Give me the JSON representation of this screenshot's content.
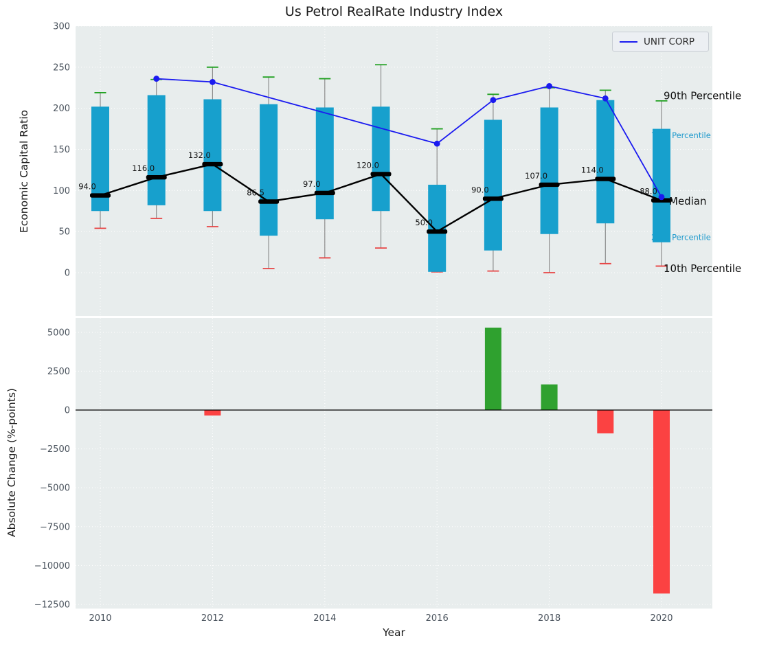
{
  "figure": {
    "title": "Us Petrol RealRate Industry Index",
    "xlabel": "Year"
  },
  "legend": {
    "label": "UNIT CORP"
  },
  "colors": {
    "plot_bg": "#e8eded",
    "grid": "#ffffff",
    "tick": "#49525c",
    "bar": "#17a0cd",
    "whisker": "#8d8d8d",
    "cap_top": "#21a121",
    "cap_bottom": "#e84343",
    "median": "#000000",
    "unit_line": "#1a1af0",
    "annotation_teal": "#1f9acd"
  },
  "chart_data": [
    {
      "type": "box-whisker-bar",
      "title": "Us Petrol RealRate Industry Index",
      "ylabel": "Economic Capital Ratio",
      "ylim": [
        -55,
        300
      ],
      "yticks": [
        300,
        250,
        200,
        150,
        100,
        50,
        0
      ],
      "grid": "white dotted on light gray",
      "years": [
        2010,
        2011,
        2012,
        2013,
        2014,
        2015,
        2016,
        2017,
        2018,
        2019,
        2020
      ],
      "xticks": [
        2010,
        2012,
        2014,
        2016,
        2018,
        2020
      ],
      "p10": [
        54,
        66,
        56,
        5,
        18,
        30,
        1,
        2,
        0,
        11,
        8
      ],
      "p25": [
        75,
        82,
        75,
        45,
        65,
        75,
        1,
        27,
        47,
        60,
        37
      ],
      "median": [
        94,
        116,
        132,
        86.5,
        97,
        120,
        50,
        90,
        107,
        114,
        88
      ],
      "p75": [
        202,
        216,
        211,
        205,
        201,
        202,
        107,
        186,
        201,
        210,
        175
      ],
      "p90": [
        219,
        235,
        250,
        238,
        236,
        253,
        175,
        217,
        225,
        222,
        209
      ],
      "median_labels": [
        "94.0",
        "116.0",
        "132.0",
        "86.5",
        "97.0",
        "120.0",
        "50.0",
        "90.0",
        "107.0",
        "114.0",
        "88.0"
      ],
      "series": [
        {
          "name": "UNIT CORP",
          "x": [
            2011,
            2012,
            2016,
            2017,
            2018,
            2019,
            2020
          ],
          "y": [
            236,
            232,
            157,
            210,
            227,
            212,
            92
          ]
        }
      ],
      "legend_position": "upper right",
      "annotations": [
        {
          "text": "90th Percentile",
          "v": 215,
          "x": 966,
          "size": 15,
          "color": "#111111",
          "layer": "over"
        },
        {
          "text": "75th Percentile",
          "v": 167,
          "x": 948,
          "size": 11.5,
          "color": "#1f9acd",
          "layer": "under"
        },
        {
          "text": "Median",
          "v": 87,
          "x": 974,
          "size": 15,
          "color": "#111111",
          "layer": "over"
        },
        {
          "text": "25th Percentile",
          "v": 43,
          "x": 948,
          "size": 11.5,
          "color": "#1f9acd",
          "layer": "under"
        },
        {
          "text": "10th Percentile",
          "v": 5,
          "x": 966,
          "size": 15,
          "color": "#111111",
          "layer": "over"
        }
      ]
    },
    {
      "type": "bar",
      "ylabel": "Absolute Change (%-points)",
      "xlabel": "Year",
      "ylim": [
        -13300,
        6000
      ],
      "yticks": [
        5000,
        2500,
        0,
        -2500,
        -5000,
        -7500,
        -10000,
        -12500
      ],
      "ytick_labels": [
        "5000",
        "2500",
        "0",
        "−2500",
        "−5000",
        "−7500",
        "−10000",
        "−12500"
      ],
      "categories": [
        2010,
        2011,
        2012,
        2013,
        2014,
        2015,
        2016,
        2017,
        2018,
        2019,
        2020
      ],
      "values": [
        0,
        0,
        -350,
        0,
        0,
        0,
        0,
        5300,
        1650,
        -1500,
        -11800
      ],
      "positive_color": "#2fa12f",
      "negative_color": "#fb4242",
      "zero_line": true
    }
  ]
}
